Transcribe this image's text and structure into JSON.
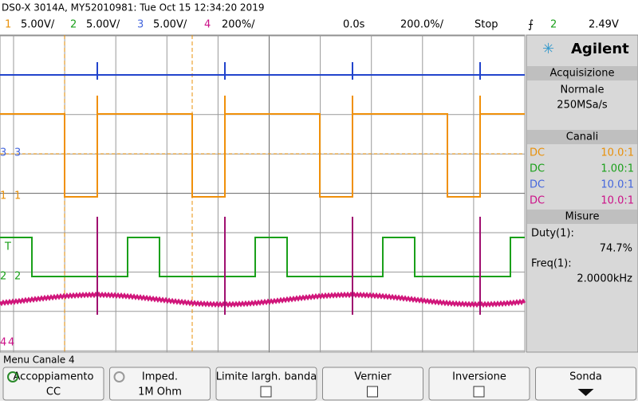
{
  "header": {
    "title": "DS0-X 3014A, MY52010981: Tue Oct 15 12:34:20 2019"
  },
  "channel_bar": {
    "ch1": "1",
    "ch1_scale": "5.00V/",
    "ch2": "2",
    "ch2_scale": "5.00V/",
    "ch3": "3",
    "ch3_scale": "5.00V/",
    "ch4": "4",
    "ch4_scale": "200%/",
    "delay": "0.0s",
    "timebase": "200.0%/",
    "run_state": "Stop",
    "trigger_source": "2",
    "trigger_level": "2.49V"
  },
  "markers": {
    "ch3": "3",
    "ch1": "1",
    "trigger": "T",
    "ch2": "2",
    "ch4": "4"
  },
  "side_panel": {
    "brand": "Agilent",
    "acquisition": {
      "title": "Acquisizione",
      "mode": "Normale",
      "rate": "250MSa/s"
    },
    "channels": {
      "title": "Canali",
      "rows": [
        [
          "DC",
          "10.0:1"
        ],
        [
          "DC",
          "1.00:1"
        ],
        [
          "DC",
          "10.0:1"
        ],
        [
          "DC",
          "10.0:1"
        ]
      ]
    },
    "measurements": {
      "title": "Misure",
      "items": [
        [
          "Duty(1):",
          "74.7%"
        ],
        [
          "Freq(1):",
          "2.0000kHz"
        ]
      ]
    }
  },
  "menu": {
    "title": "Menu Canale 4",
    "softkeys": [
      [
        "Accoppiamento",
        "CC"
      ],
      [
        "Imped.",
        "1M Ohm"
      ],
      [
        "Limite largh. banda",
        ""
      ],
      [
        "Vernier",
        ""
      ],
      [
        "Inversione",
        ""
      ],
      [
        "Sonda",
        ""
      ]
    ]
  }
}
